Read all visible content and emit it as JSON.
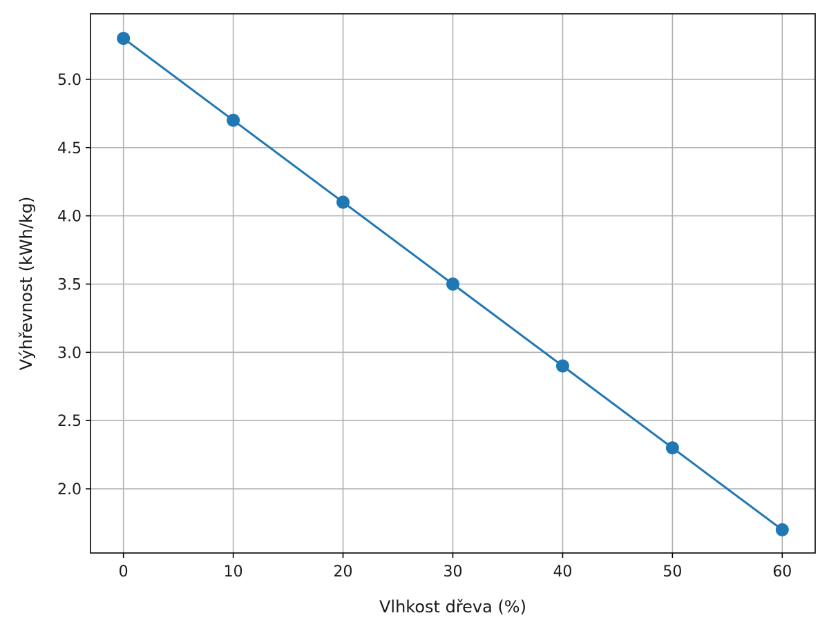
{
  "chart_data": {
    "type": "line",
    "title": "",
    "xlabel": "Vlhkost dřeva (%)",
    "ylabel": "Výhřevnost (kWh/kg)",
    "x": [
      0,
      10,
      20,
      30,
      40,
      50,
      60
    ],
    "series": [
      {
        "values": [
          5.3,
          4.7,
          4.1,
          3.5,
          2.9,
          2.3,
          1.7
        ]
      }
    ],
    "xlim": [
      -3,
      63
    ],
    "ylim": [
      1.53,
      5.48
    ],
    "xticks": [
      0,
      10,
      20,
      30,
      40,
      50,
      60
    ],
    "xtick_labels": [
      "0",
      "10",
      "20",
      "30",
      "40",
      "50",
      "60"
    ],
    "yticks": [
      2.0,
      2.5,
      3.0,
      3.5,
      4.0,
      4.5,
      5.0
    ],
    "ytick_labels": [
      "2.0",
      "2.5",
      "3.0",
      "3.5",
      "4.0",
      "4.5",
      "5.0"
    ],
    "grid": true,
    "legend": "none",
    "markers": "circle",
    "colors": {
      "line": "#1f77b4",
      "grid": "#b0b0b0",
      "axes": "#000000"
    }
  }
}
